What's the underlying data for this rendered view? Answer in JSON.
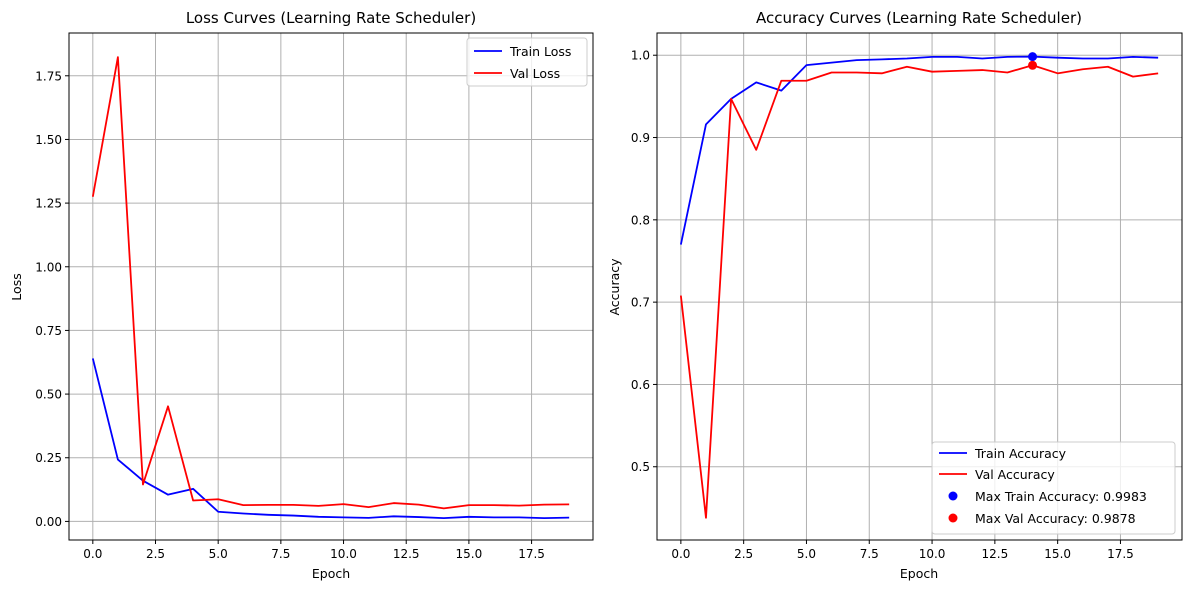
{
  "chart_data": [
    {
      "type": "line",
      "title": "Loss Curves (Learning Rate Scheduler)",
      "xlabel": "Epoch",
      "ylabel": "Loss",
      "xlim": [
        -0.95,
        19.95
      ],
      "ylim": [
        -0.073,
        1.918
      ],
      "xticks": [
        0.0,
        2.5,
        5.0,
        7.5,
        10.0,
        12.5,
        15.0,
        17.5
      ],
      "xtick_labels": [
        "0.0",
        "2.5",
        "5.0",
        "7.5",
        "10.0",
        "12.5",
        "15.0",
        "17.5"
      ],
      "yticks": [
        0.0,
        0.25,
        0.5,
        0.75,
        1.0,
        1.25,
        1.5,
        1.75
      ],
      "ytick_labels": [
        "0.00",
        "0.25",
        "0.50",
        "0.75",
        "1.00",
        "1.25",
        "1.50",
        "1.75"
      ],
      "grid": true,
      "legend_position": "top-right",
      "x": [
        0,
        1,
        2,
        3,
        4,
        5,
        6,
        7,
        8,
        9,
        10,
        11,
        12,
        13,
        14,
        15,
        16,
        17,
        18,
        19
      ],
      "series": [
        {
          "name": "Train Loss",
          "color": "#0000ff",
          "values": [
            0.64,
            0.243,
            0.16,
            0.105,
            0.128,
            0.038,
            0.031,
            0.026,
            0.023,
            0.018,
            0.016,
            0.014,
            0.02,
            0.017,
            0.013,
            0.018,
            0.016,
            0.016,
            0.013,
            0.015
          ]
        },
        {
          "name": "Val Loss",
          "color": "#ff0000",
          "values": [
            1.275,
            1.823,
            0.145,
            0.452,
            0.082,
            0.087,
            0.064,
            0.065,
            0.065,
            0.061,
            0.068,
            0.056,
            0.072,
            0.066,
            0.051,
            0.064,
            0.064,
            0.062,
            0.066,
            0.067
          ]
        }
      ],
      "markers": []
    },
    {
      "type": "line",
      "title": "Accuracy Curves (Learning Rate Scheduler)",
      "xlabel": "Epoch",
      "ylabel": "Accuracy",
      "xlim": [
        -0.95,
        19.95
      ],
      "ylim": [
        0.411,
        1.027
      ],
      "xticks": [
        0.0,
        2.5,
        5.0,
        7.5,
        10.0,
        12.5,
        15.0,
        17.5
      ],
      "xtick_labels": [
        "0.0",
        "2.5",
        "5.0",
        "7.5",
        "10.0",
        "12.5",
        "15.0",
        "17.5"
      ],
      "yticks": [
        0.5,
        0.6,
        0.7,
        0.8,
        0.9,
        1.0
      ],
      "ytick_labels": [
        "0.5",
        "0.6",
        "0.7",
        "0.8",
        "0.9",
        "1.0"
      ],
      "grid": true,
      "legend_position": "bottom-right",
      "x": [
        0,
        1,
        2,
        3,
        4,
        5,
        6,
        7,
        8,
        9,
        10,
        11,
        12,
        13,
        14,
        15,
        16,
        17,
        18,
        19
      ],
      "series": [
        {
          "name": "Train Accuracy",
          "color": "#0000ff",
          "values": [
            0.77,
            0.916,
            0.947,
            0.967,
            0.957,
            0.988,
            0.991,
            0.994,
            0.995,
            0.996,
            0.998,
            0.998,
            0.996,
            0.998,
            0.9983,
            0.997,
            0.996,
            0.996,
            0.998,
            0.997
          ]
        },
        {
          "name": "Val Accuracy",
          "color": "#ff0000",
          "values": [
            0.708,
            0.438,
            0.947,
            0.885,
            0.969,
            0.969,
            0.979,
            0.979,
            0.978,
            0.986,
            0.98,
            0.981,
            0.982,
            0.979,
            0.9878,
            0.978,
            0.983,
            0.986,
            0.974,
            0.978
          ]
        }
      ],
      "markers": [
        {
          "name": "Max Train Accuracy: 0.9983",
          "x": 14,
          "y": 0.9983,
          "color": "#0000ff"
        },
        {
          "name": "Max Val Accuracy: 0.9878",
          "x": 14,
          "y": 0.9878,
          "color": "#ff0000"
        }
      ]
    }
  ]
}
